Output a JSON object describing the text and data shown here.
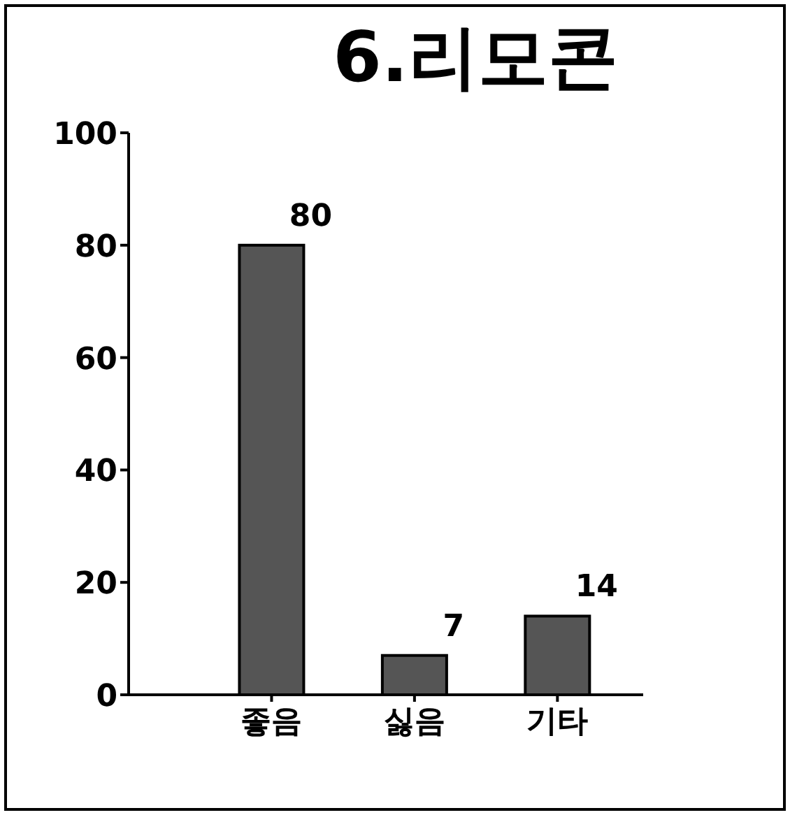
{
  "chart_data": {
    "type": "bar",
    "title": "6.리모콘",
    "categories": [
      "좋음",
      "싫음",
      "기타"
    ],
    "values": [
      80,
      7,
      14
    ],
    "color": "#555555",
    "ylim": [
      0,
      100
    ],
    "yticks": [
      0,
      20,
      40,
      60,
      80,
      100
    ],
    "grid": false,
    "data_labels": true
  }
}
